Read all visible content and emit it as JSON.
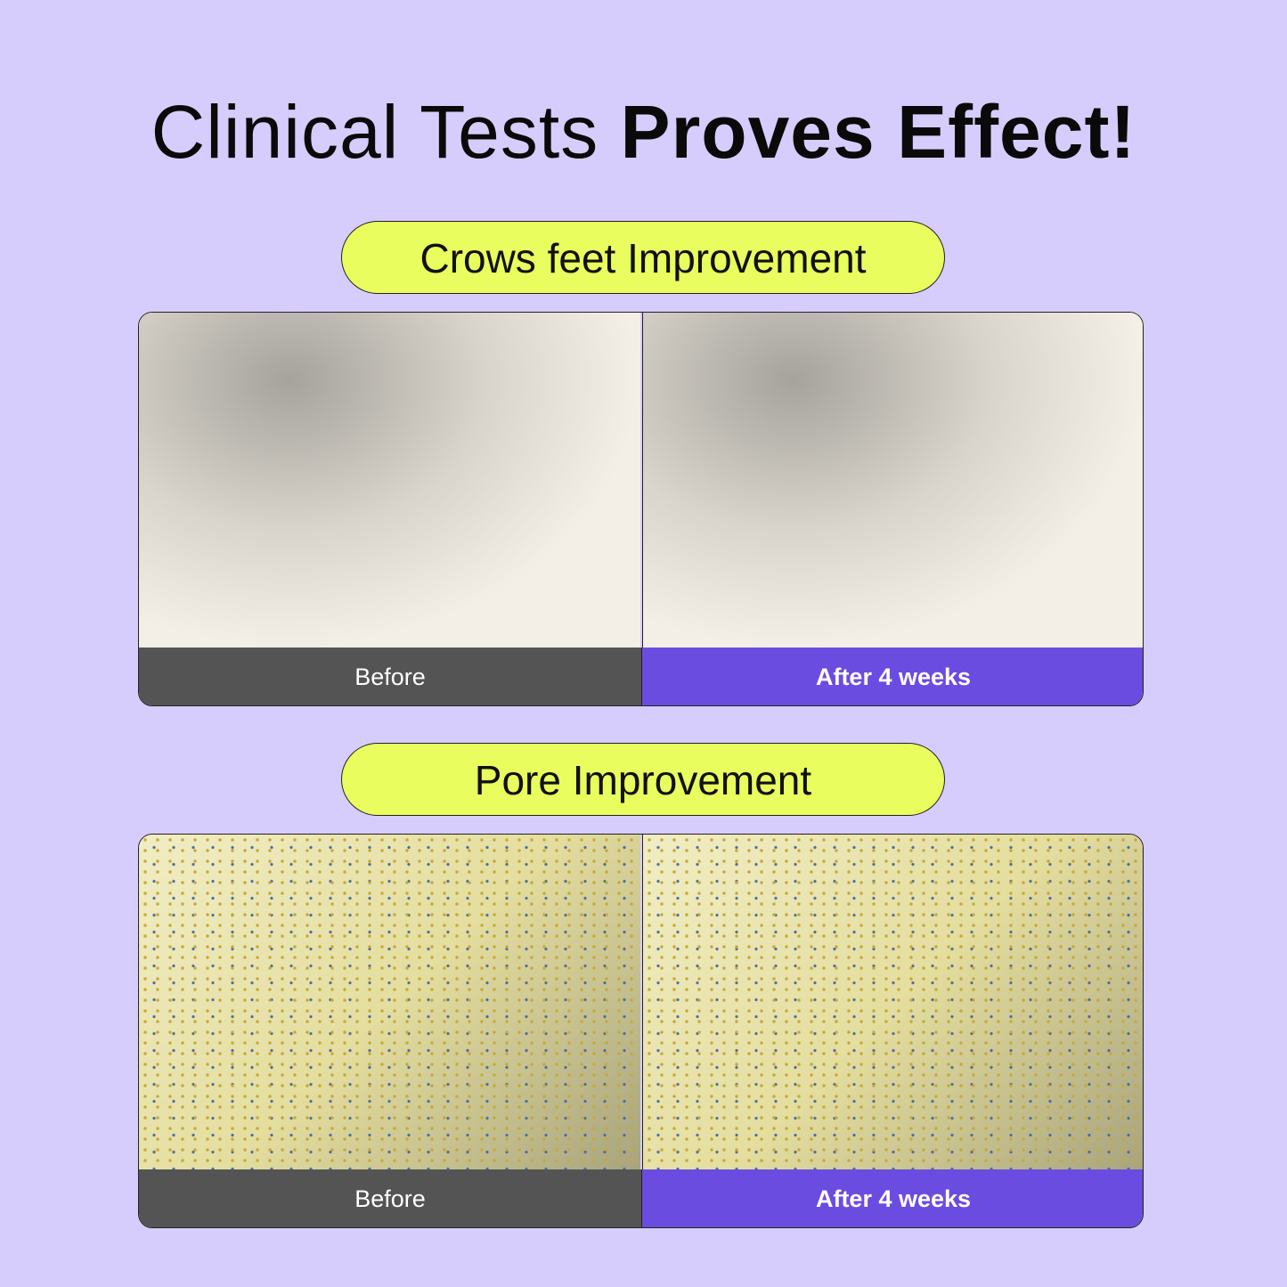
{
  "title": {
    "part1": "Clinical Tests",
    "part2": "Proves Effect!"
  },
  "sections": [
    {
      "heading": "Crows feet Improvement",
      "before": "Before",
      "after": "After 4 weeks"
    },
    {
      "heading": "Pore Improvement",
      "before": "Before",
      "after": "After 4 weeks"
    }
  ],
  "colors": {
    "background": "#d7cdfd",
    "pill": "#e9fd5e",
    "before_bar": "#545454",
    "after_bar": "#6b4ce0"
  }
}
